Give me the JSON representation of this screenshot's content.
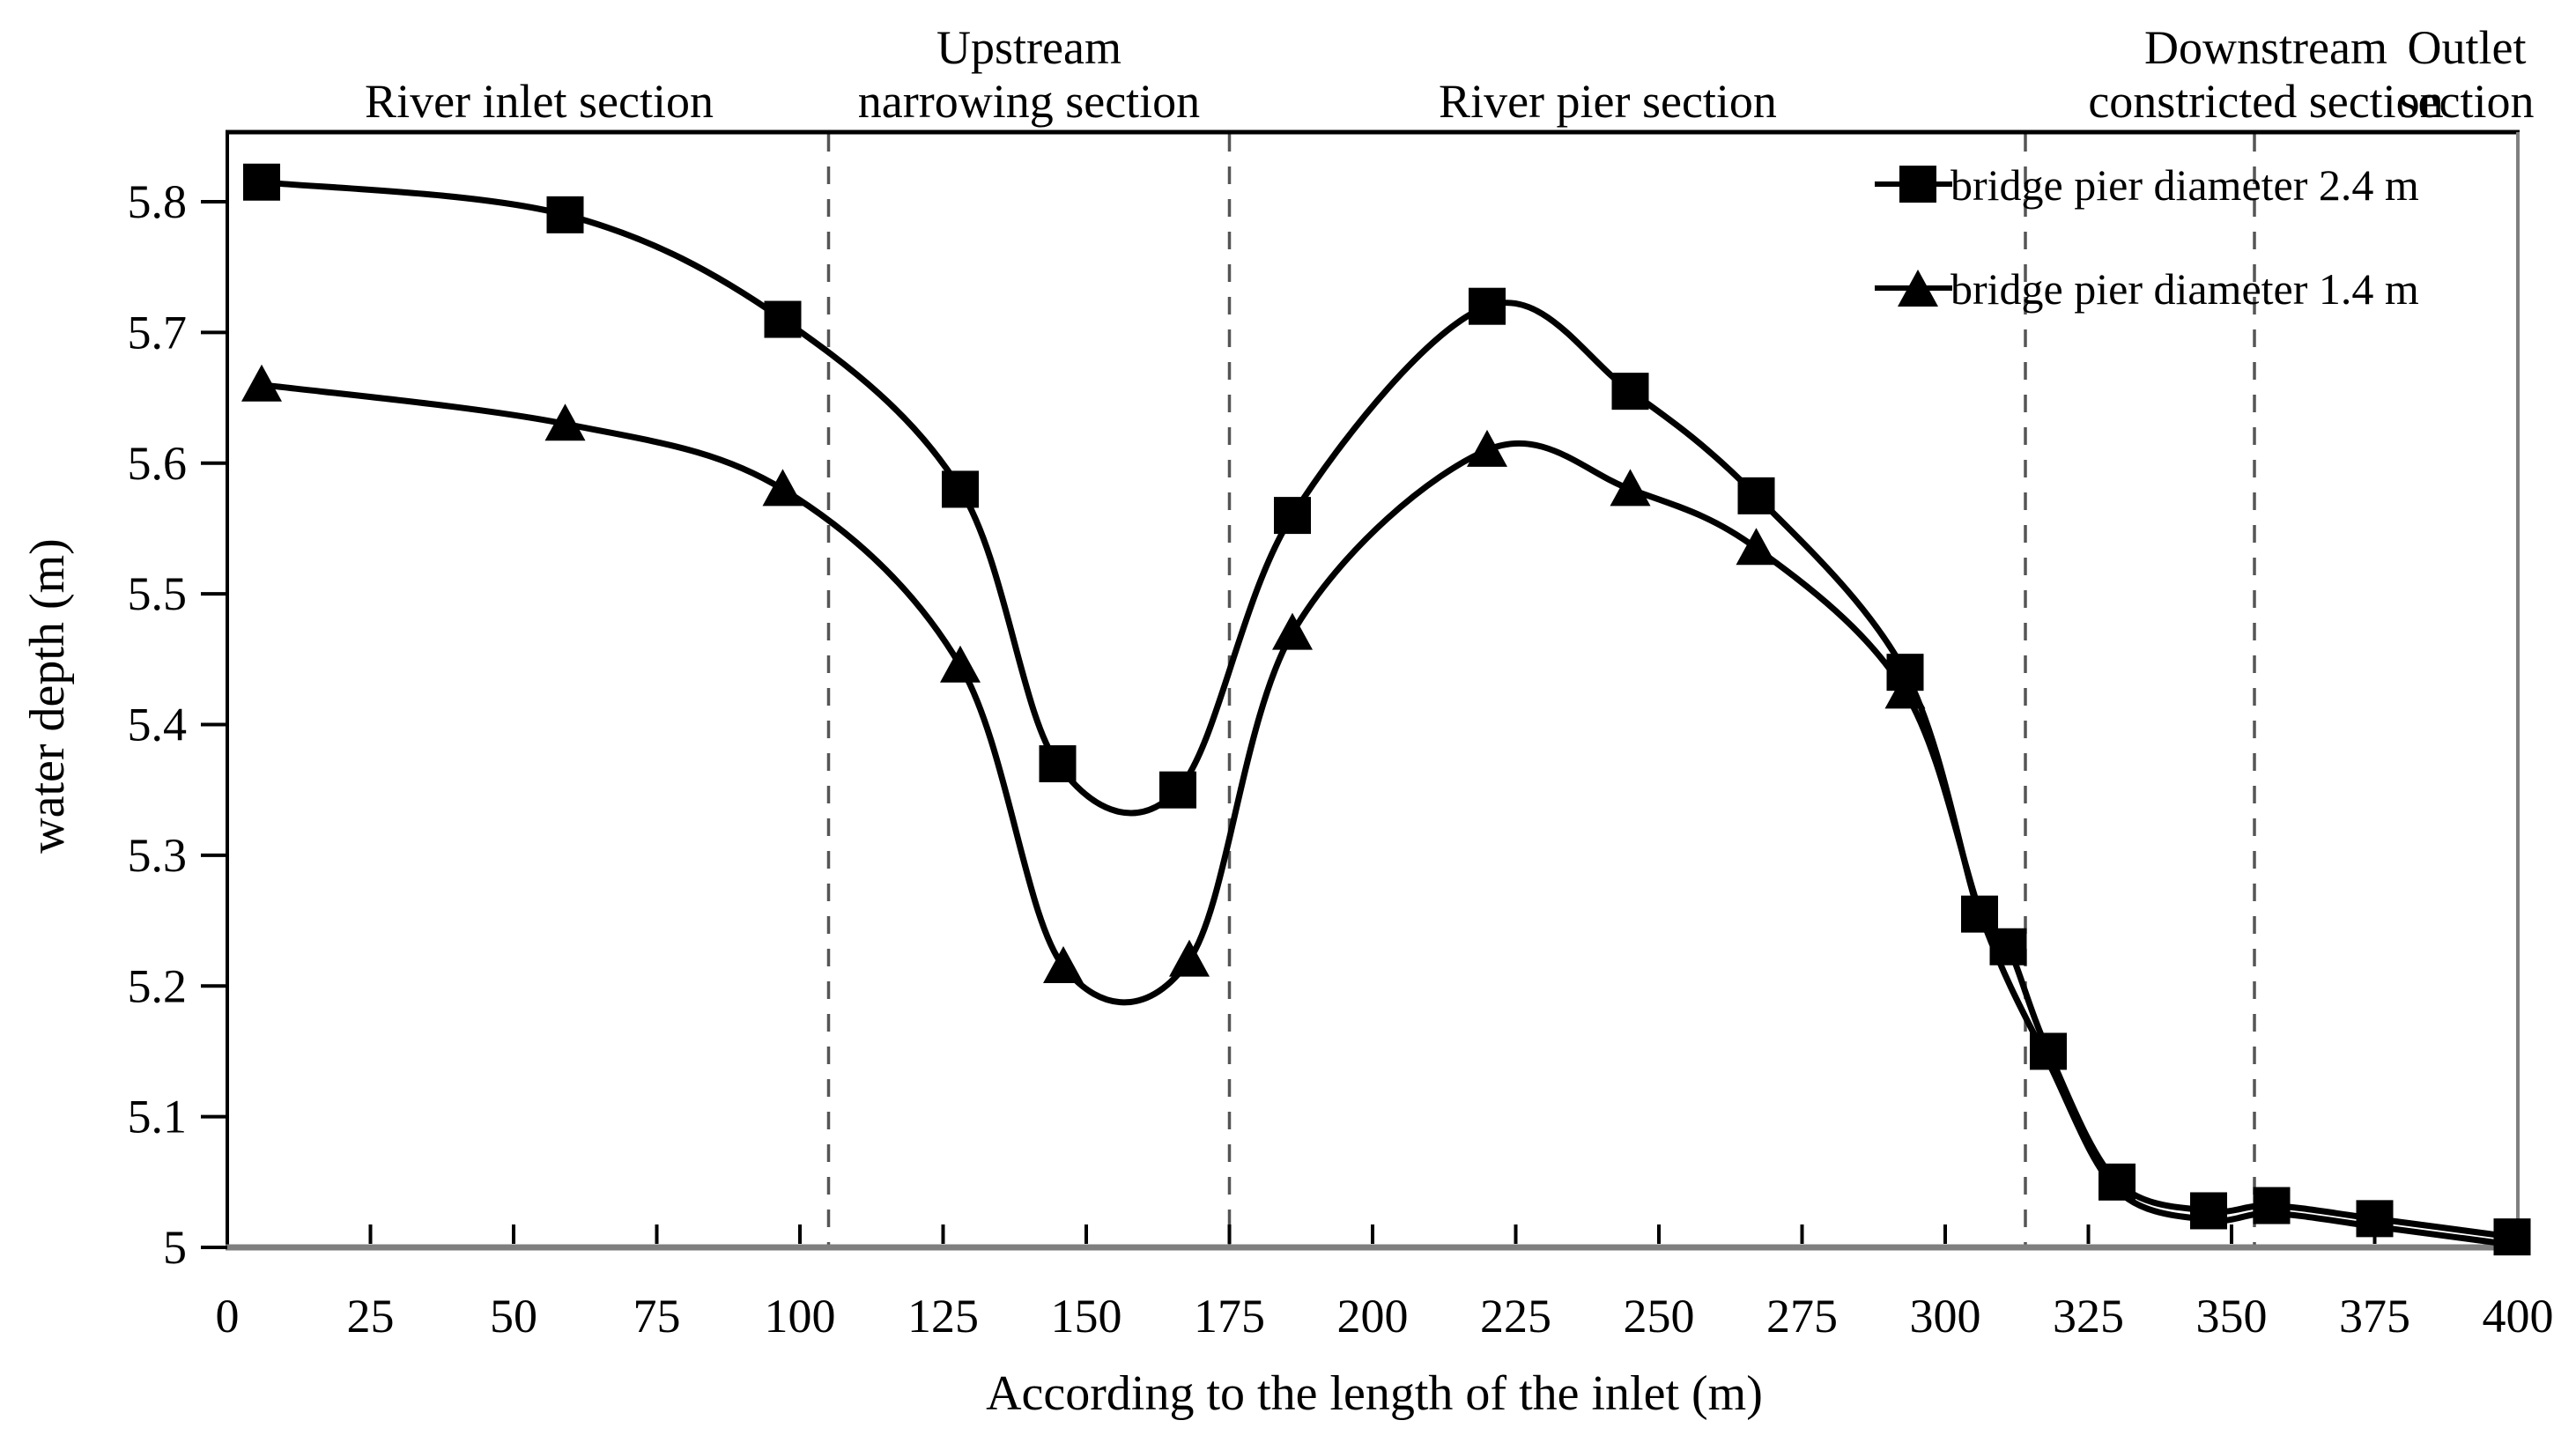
{
  "chart_data": {
    "type": "line",
    "title": "",
    "xlabel": "According to the length of the inlet (m)",
    "ylabel": "water depth (m)",
    "xlim": [
      0,
      400
    ],
    "ylim": [
      5,
      5.85
    ],
    "grid": false,
    "legend_position": "top-right",
    "x_ticks": [
      0,
      25,
      50,
      75,
      100,
      125,
      150,
      175,
      200,
      225,
      250,
      275,
      300,
      325,
      350,
      375,
      400
    ],
    "y_ticks": [
      5,
      5.1,
      5.2,
      5.3,
      5.4,
      5.5,
      5.6,
      5.7,
      5.8
    ],
    "section_dividers_x": [
      105,
      175,
      314,
      354
    ],
    "sections": [
      {
        "lines": [
          "River inlet section"
        ]
      },
      {
        "lines": [
          "Upstream",
          "narrowing section"
        ]
      },
      {
        "lines": [
          "River pier section"
        ]
      },
      {
        "lines": [
          "Downstream",
          "constricted section"
        ]
      },
      {
        "lines": [
          "Outlet",
          "section"
        ]
      }
    ],
    "series": [
      {
        "name": "bridge pier diameter 2.4 m",
        "marker": "square",
        "color": "#000000",
        "points": [
          [
            6,
            5.815
          ],
          [
            59,
            5.79
          ],
          [
            97,
            5.71
          ],
          [
            128,
            5.58
          ],
          [
            145,
            5.37
          ],
          [
            166,
            5.35
          ],
          [
            186,
            5.56
          ],
          [
            220,
            5.72
          ],
          [
            245,
            5.655
          ],
          [
            267,
            5.575
          ],
          [
            293,
            5.44
          ],
          [
            306,
            5.255
          ],
          [
            311,
            5.23
          ],
          [
            318,
            5.15
          ],
          [
            330,
            5.05
          ],
          [
            346,
            5.028
          ],
          [
            357,
            5.032
          ],
          [
            375,
            5.022
          ],
          [
            399,
            5.008
          ]
        ]
      },
      {
        "name": "bridge pier diameter 1.4 m",
        "marker": "triangle",
        "color": "#000000",
        "markers_through_x": 296,
        "points": [
          [
            6,
            5.66
          ],
          [
            59,
            5.63
          ],
          [
            97,
            5.58
          ],
          [
            128,
            5.445
          ],
          [
            146,
            5.215
          ],
          [
            168,
            5.22
          ],
          [
            186,
            5.47
          ],
          [
            220,
            5.61
          ],
          [
            245,
            5.58
          ],
          [
            267,
            5.535
          ],
          [
            293,
            5.425
          ],
          [
            307,
            5.245
          ],
          [
            318,
            5.142
          ],
          [
            330,
            5.044
          ],
          [
            346,
            5.021
          ],
          [
            357,
            5.026
          ],
          [
            375,
            5.016
          ],
          [
            399,
            5.002
          ]
        ]
      }
    ]
  }
}
